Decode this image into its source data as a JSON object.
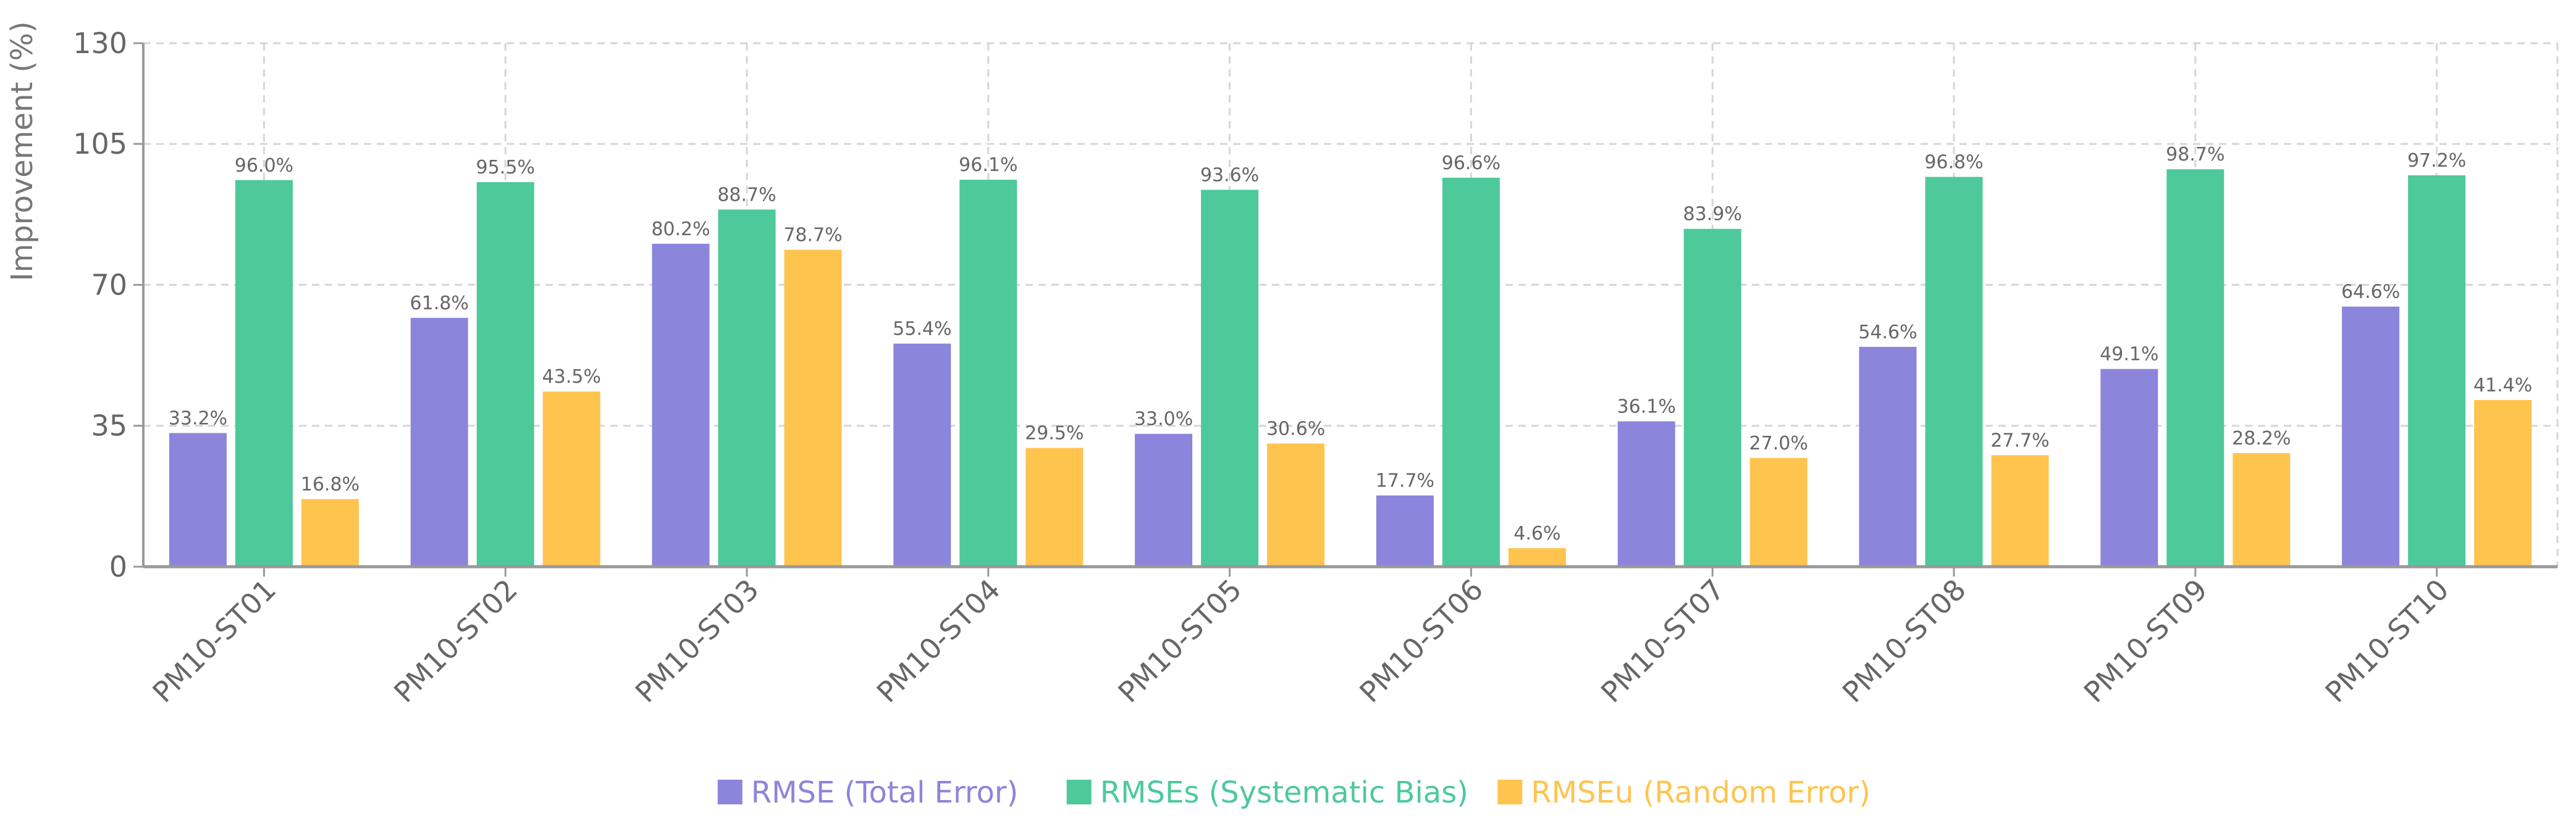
{
  "chart_data": {
    "type": "bar",
    "title": "",
    "xlabel": "",
    "ylabel": "Improvement (%)",
    "ylim": [
      0,
      130
    ],
    "yticks": [
      0,
      35,
      70,
      105,
      130
    ],
    "grid": true,
    "legend_position": "bottom-center",
    "categories": [
      "PM10-ST01",
      "PM10-ST02",
      "PM10-ST03",
      "PM10-ST04",
      "PM10-ST05",
      "PM10-ST06",
      "PM10-ST07",
      "PM10-ST08",
      "PM10-ST09",
      "PM10-ST10"
    ],
    "series": [
      {
        "name": "RMSE (Total Error)",
        "color": "#8B85DC",
        "values": [
          33.2,
          61.8,
          80.2,
          55.4,
          33.0,
          17.7,
          36.1,
          54.6,
          49.1,
          64.6
        ],
        "labels": [
          "33.2%",
          "61.8%",
          "80.2%",
          "55.4%",
          "33.0%",
          "17.7%",
          "36.1%",
          "54.6%",
          "49.1%",
          "64.6%"
        ]
      },
      {
        "name": "RMSEs (Systematic Bias)",
        "color": "#4DC99A",
        "values": [
          96.0,
          95.5,
          88.7,
          96.1,
          93.6,
          96.6,
          83.9,
          96.8,
          98.7,
          97.2
        ],
        "labels": [
          "96.0%",
          "95.5%",
          "88.7%",
          "96.1%",
          "93.6%",
          "96.6%",
          "83.9%",
          "96.8%",
          "98.7%",
          "97.2%"
        ]
      },
      {
        "name": "RMSEu (Random Error)",
        "color": "#FFC44D",
        "values": [
          16.8,
          43.5,
          78.7,
          29.5,
          30.6,
          4.6,
          27.0,
          27.7,
          28.2,
          41.4
        ],
        "labels": [
          "16.8%",
          "43.5%",
          "78.7%",
          "29.5%",
          "30.6%",
          "4.6%",
          "27.0%",
          "27.7%",
          "28.2%",
          "41.4%"
        ]
      }
    ]
  }
}
